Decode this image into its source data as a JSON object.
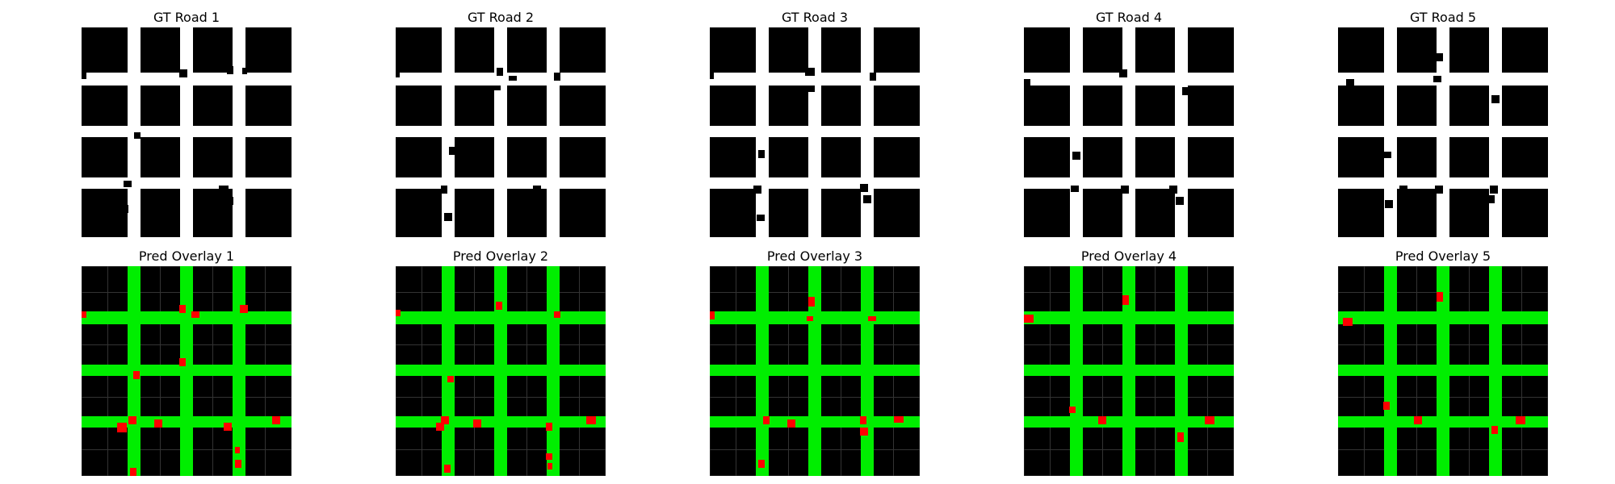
{
  "figure": {
    "rows": [
      {
        "kind": "gt",
        "titles": [
          "GT Road 1",
          "GT Road 2",
          "GT Road 3",
          "GT Road 4",
          "GT Road 5"
        ]
      },
      {
        "kind": "overlay",
        "titles": [
          "Pred Overlay 1",
          "Pred Overlay 2",
          "Pred Overlay 3",
          "Pred Overlay 4",
          "Pred Overlay 5"
        ]
      }
    ],
    "colors": {
      "gt_road": "#ffffff",
      "gt_block": "#000000",
      "overlay_background": "#000000",
      "overlay_road": "#00ee00",
      "overlay_error": "#ff0000"
    }
  }
}
